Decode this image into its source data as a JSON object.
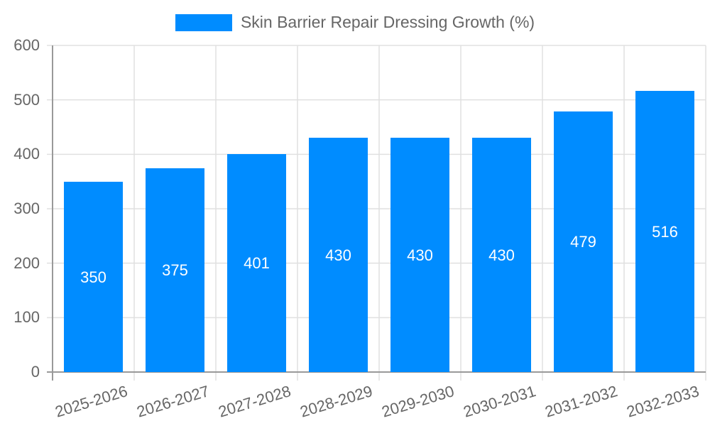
{
  "chart_data": {
    "type": "bar",
    "title": "",
    "legend": [
      {
        "label": "Skin Barrier Repair Dressing Growth (%)",
        "color": "#008cff"
      }
    ],
    "legend_position": "top",
    "categories": [
      "2025-2026",
      "2026-2027",
      "2027-2028",
      "2028-2029",
      "2029-2030",
      "2030-2031",
      "2031-2032",
      "2032-2033"
    ],
    "series": [
      {
        "name": "Skin Barrier Repair Dressing Growth (%)",
        "values": [
          350,
          375,
          401,
          430,
          430,
          430,
          479,
          516
        ]
      }
    ],
    "values": [
      350,
      375,
      401,
      430,
      430,
      430,
      479,
      516
    ],
    "data_labels": [
      "350",
      "375",
      "401",
      "430",
      "430",
      "430",
      "479",
      "516"
    ],
    "xlabel": "",
    "ylabel": "",
    "ylim": [
      0,
      600
    ],
    "yticks": [
      "0",
      "100",
      "200",
      "300",
      "400",
      "500",
      "600"
    ],
    "grid": true,
    "colors": {
      "bar": "#008cff",
      "grid": "#e0e0e0",
      "axis": "#999999",
      "text": "#666666"
    }
  }
}
